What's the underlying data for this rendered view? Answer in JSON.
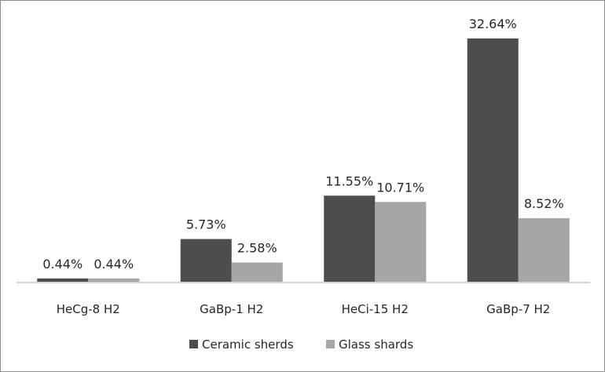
{
  "chart_data": {
    "type": "bar",
    "title": "",
    "xlabel": "",
    "ylabel": "",
    "categories": [
      "HeCg-8 H2",
      "GaBp-1 H2",
      "HeCi-15 H2",
      "GaBp-7 H2"
    ],
    "series": [
      {
        "name": "Ceramic sherds",
        "color": "#4d4d4d",
        "values": [
          0.44,
          5.73,
          11.55,
          32.64
        ],
        "labels": [
          "0.44%",
          "5.73%",
          "11.55%",
          "32.64%"
        ]
      },
      {
        "name": "Glass shards",
        "color": "#a6a6a6",
        "values": [
          0.44,
          2.58,
          10.71,
          8.52
        ],
        "labels": [
          "0.44%",
          "2.58%",
          "10.71%",
          "8.52%"
        ]
      }
    ],
    "ylim": [
      0,
      32.64
    ],
    "grid": false,
    "legend_position": "bottom"
  }
}
